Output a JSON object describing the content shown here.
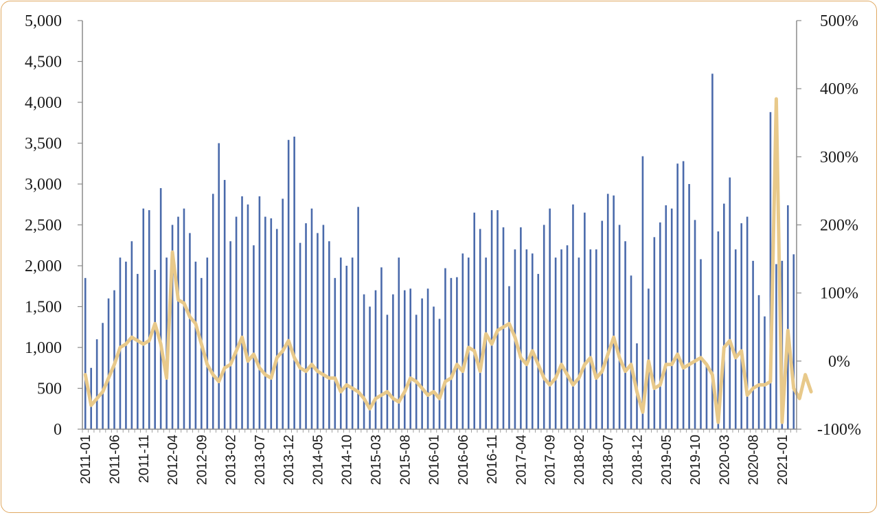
{
  "chart_data": {
    "type": "bar",
    "title": "",
    "xlabel": "",
    "ylabel": "",
    "y2label": "",
    "ylim": [
      0,
      5000
    ],
    "y2lim": [
      -100,
      500
    ],
    "y_ticks": [
      "0",
      "500",
      "1,000",
      "1,500",
      "2,000",
      "2,500",
      "3,000",
      "3,500",
      "4,000",
      "4,500",
      "5,000"
    ],
    "y2_ticks": [
      "-100%",
      "0%",
      "100%",
      "200%",
      "300%",
      "400%",
      "500%"
    ],
    "x_tick_labels": [
      "2011-01",
      "2011-06",
      "2011-11",
      "2012-04",
      "2012-09",
      "2013-02",
      "2013-07",
      "2013-12",
      "2014-05",
      "2014-10",
      "2015-03",
      "2015-08",
      "2016-01",
      "2016-06",
      "2016-11",
      "2017-04",
      "2017-09",
      "2018-02",
      "2018-07",
      "2018-12",
      "2019-05",
      "2019-10",
      "2020-03",
      "2020-08",
      "2021-01"
    ],
    "grid": false,
    "legend": "none",
    "colors": {
      "bars": "#4a6aab",
      "line": "#e8c98a"
    },
    "series": [
      {
        "type": "bar",
        "axis": "left",
        "start": "2011-01",
        "values": [
          1850,
          750,
          1100,
          1300,
          1600,
          1700,
          2100,
          2050,
          2300,
          1900,
          2700,
          2680,
          1950,
          2950,
          2100,
          2500,
          2600,
          2700,
          2400,
          2050,
          1850,
          2100,
          2880,
          3500,
          3050,
          2300,
          2600,
          2850,
          2750,
          2250,
          2850,
          2600,
          2580,
          2450,
          2820,
          3540,
          3580,
          2280,
          2520,
          2700,
          2400,
          2500,
          2300,
          1850,
          2100,
          2000,
          2100,
          2720,
          1650,
          1500,
          1700,
          1980,
          1400,
          1650,
          2100,
          1700,
          1720,
          1400,
          1600,
          1720,
          1500,
          1350,
          1970,
          1850,
          1860,
          2150,
          2100,
          2650,
          2450,
          2100,
          2680,
          2680,
          2470,
          1750,
          2200,
          2470,
          2200,
          2150,
          1900,
          2500,
          2700,
          2100,
          2200,
          2250,
          2750,
          2100,
          2650,
          2200,
          2200,
          2550,
          2880,
          2860,
          2500,
          2300,
          1880,
          1050,
          3340,
          1720,
          2350,
          2530,
          2740,
          2700,
          3250,
          3280,
          3000,
          2560,
          2080,
          780,
          4350,
          2420,
          2760,
          3080,
          2200,
          2520,
          2600,
          2060,
          1640,
          1380,
          3880,
          2020,
          2060,
          2740,
          2140
        ]
      },
      {
        "type": "line",
        "axis": "right",
        "start": "2011-01",
        "values": [
          -20,
          -65,
          -55,
          -45,
          -25,
          -5,
          20,
          25,
          35,
          30,
          25,
          30,
          55,
          25,
          -25,
          160,
          90,
          85,
          65,
          55,
          25,
          -5,
          -20,
          -30,
          -10,
          -5,
          15,
          35,
          0,
          10,
          -10,
          -20,
          -25,
          5,
          15,
          30,
          5,
          -10,
          -15,
          -5,
          -15,
          -20,
          -25,
          -25,
          -45,
          -35,
          -40,
          -45,
          -55,
          -70,
          -55,
          -50,
          -45,
          -55,
          -60,
          -45,
          -25,
          -30,
          -40,
          -50,
          -45,
          -55,
          -30,
          -25,
          -5,
          -15,
          20,
          15,
          -15,
          40,
          25,
          45,
          50,
          55,
          35,
          5,
          -5,
          15,
          -5,
          -25,
          -35,
          -25,
          -5,
          -20,
          -35,
          -25,
          -5,
          5,
          -25,
          -15,
          10,
          35,
          5,
          -15,
          -5,
          -45,
          -75,
          0,
          -40,
          -35,
          -5,
          -5,
          10,
          -10,
          -5,
          0,
          5,
          -5,
          -20,
          -90,
          20,
          30,
          5,
          15,
          -50,
          -40,
          -35,
          -35,
          -30,
          385,
          -90,
          45,
          -40,
          -55,
          -20,
          -45
        ]
      }
    ]
  }
}
